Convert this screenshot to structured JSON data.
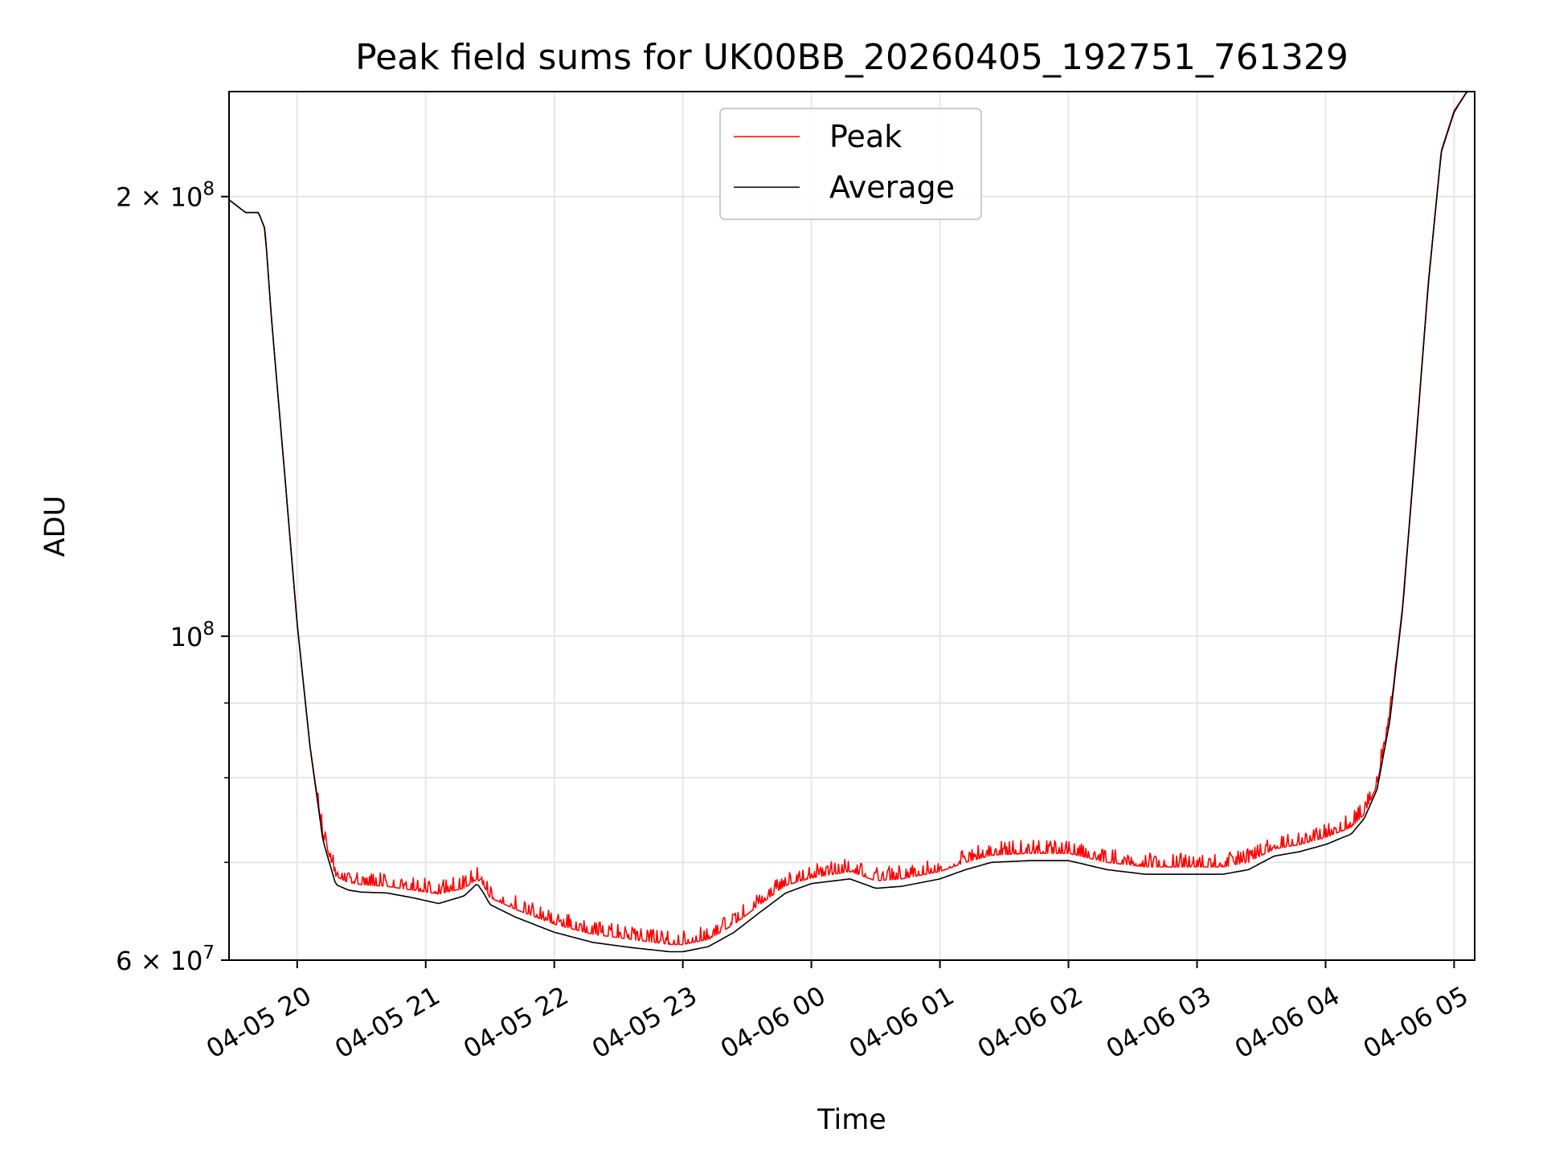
{
  "chart_data": {
    "type": "line",
    "title": "Peak field sums for UK00BB_20260405_192751_761329",
    "xlabel": "Time",
    "ylabel": "ADU",
    "yscale": "log",
    "ylim": [
      60000000,
      236000000
    ],
    "xlim_hours": [
      19.47,
      29.16
    ],
    "x_unit": "hours since 2026-04-05 00:00",
    "grid": true,
    "legend_position": "upper center",
    "x_ticks": [
      {
        "value": 20,
        "label": "04-05 20"
      },
      {
        "value": 21,
        "label": "04-05 21"
      },
      {
        "value": 22,
        "label": "04-05 22"
      },
      {
        "value": 23,
        "label": "04-05 23"
      },
      {
        "value": 24,
        "label": "04-06 00"
      },
      {
        "value": 25,
        "label": "04-06 01"
      },
      {
        "value": 26,
        "label": "04-06 02"
      },
      {
        "value": 27,
        "label": "04-06 03"
      },
      {
        "value": 28,
        "label": "04-06 04"
      },
      {
        "value": 29,
        "label": "04-06 05"
      }
    ],
    "y_major_ticks": [
      {
        "value": 60000000,
        "label_base": "6 × 10",
        "label_exp": "7"
      },
      {
        "value": 100000000,
        "label_base": "10",
        "label_exp": "8"
      },
      {
        "value": 200000000,
        "label_base": "2 × 10",
        "label_exp": "8"
      }
    ],
    "y_minor_gridlines": [
      70000000,
      80000000,
      90000000
    ],
    "series": [
      {
        "name": "Peak",
        "color": "#ff0000",
        "style": "noisy",
        "x": [
          19.47,
          19.6,
          19.7,
          19.75,
          19.8,
          19.9,
          20.0,
          20.1,
          20.2,
          20.3,
          20.4,
          20.5,
          20.7,
          20.9,
          21.1,
          21.3,
          21.4,
          21.45,
          21.5,
          21.7,
          22.0,
          22.3,
          22.6,
          22.9,
          23.0,
          23.2,
          23.4,
          23.6,
          23.8,
          24.0,
          24.3,
          24.5,
          24.7,
          25.0,
          25.2,
          25.4,
          25.7,
          26.0,
          26.3,
          26.6,
          26.8,
          27.0,
          27.2,
          27.4,
          27.6,
          27.8,
          28.0,
          28.2,
          28.3,
          28.4,
          28.5,
          28.6,
          28.7,
          28.8,
          28.9,
          29.0,
          29.1,
          29.16
        ],
        "y": [
          199000000,
          195000000,
          195000000,
          190000000,
          165000000,
          130000000,
          102000000,
          84000000,
          73000000,
          68500000,
          67800000,
          67600000,
          67400000,
          67000000,
          66600000,
          67200000,
          68200000,
          67500000,
          66200000,
          65000000,
          63500000,
          62500000,
          62000000,
          61500000,
          61500000,
          62000000,
          63500000,
          65500000,
          67500000,
          68300000,
          69000000,
          68000000,
          68200000,
          69000000,
          70000000,
          70800000,
          71000000,
          71000000,
          70000000,
          69500000,
          69500000,
          69500000,
          69500000,
          70000000,
          71500000,
          72000000,
          72800000,
          74000000,
          75500000,
          79000000,
          88000000,
          105000000,
          135000000,
          175000000,
          215000000,
          229000000,
          236000000,
          236000000
        ]
      },
      {
        "name": "Average",
        "color": "#000000",
        "style": "smooth",
        "x": [
          19.47,
          19.6,
          19.7,
          19.75,
          19.8,
          19.9,
          20.0,
          20.1,
          20.2,
          20.3,
          20.4,
          20.5,
          20.7,
          20.9,
          21.1,
          21.3,
          21.4,
          21.45,
          21.5,
          21.7,
          22.0,
          22.3,
          22.6,
          22.9,
          23.0,
          23.2,
          23.4,
          23.6,
          23.8,
          24.0,
          24.3,
          24.5,
          24.7,
          25.0,
          25.2,
          25.4,
          25.7,
          26.0,
          26.3,
          26.6,
          26.8,
          27.0,
          27.2,
          27.4,
          27.6,
          27.8,
          28.0,
          28.2,
          28.3,
          28.4,
          28.5,
          28.6,
          28.7,
          28.8,
          28.9,
          29.0,
          29.1,
          29.16
        ],
        "y": [
          199000000,
          195000000,
          195000000,
          190000000,
          165000000,
          130000000,
          102000000,
          84000000,
          72500000,
          67600000,
          67000000,
          66800000,
          66700000,
          66200000,
          65600000,
          66400000,
          67700000,
          66700000,
          65500000,
          64200000,
          62700000,
          61700000,
          61200000,
          60800000,
          60800000,
          61300000,
          62700000,
          64700000,
          66700000,
          67700000,
          68200000,
          67200000,
          67400000,
          68200000,
          69200000,
          70000000,
          70200000,
          70200000,
          69200000,
          68700000,
          68700000,
          68700000,
          68700000,
          69200000,
          70700000,
          71200000,
          72000000,
          73200000,
          75000000,
          78500000,
          87500000,
          104500000,
          134500000,
          174500000,
          214500000,
          228500000,
          236000000,
          236000000
        ]
      }
    ]
  }
}
